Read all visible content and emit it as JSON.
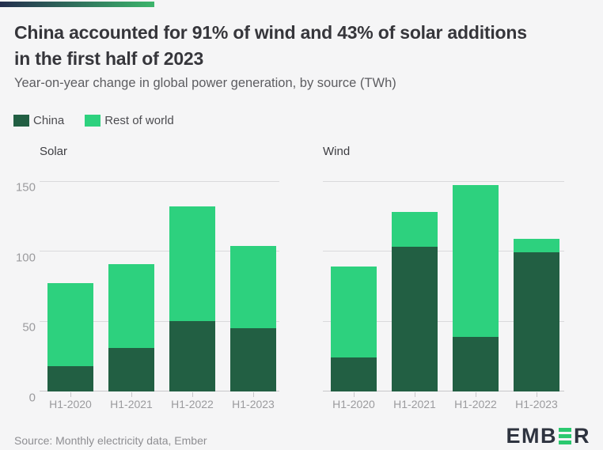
{
  "header": {
    "title_line1": "China accounted for 91% of wind and 43% of solar additions",
    "title_line2": "in the first half of 2023",
    "subtitle": "Year-on-year change in global power generation, by source (TWh)"
  },
  "legend": {
    "items": [
      {
        "label": "China",
        "color": "#225f43"
      },
      {
        "label": "Rest of world",
        "color": "#2dd17e"
      }
    ]
  },
  "chart_data": [
    {
      "type": "bar",
      "stacked": true,
      "title": "Solar",
      "categories": [
        "H1-2020",
        "H1-2021",
        "H1-2022",
        "H1-2023"
      ],
      "series": [
        {
          "name": "China",
          "color": "#225f43",
          "values": [
            18,
            31,
            50,
            45
          ]
        },
        {
          "name": "Rest of world",
          "color": "#2dd17e",
          "values": [
            59,
            60,
            82,
            59
          ]
        }
      ],
      "totals": [
        77,
        91,
        132,
        104
      ],
      "ylim": [
        0,
        150
      ],
      "yticks": [
        0,
        50,
        100,
        150
      ],
      "show_y_labels": true,
      "grid": true,
      "legend_position": "top-left"
    },
    {
      "type": "bar",
      "stacked": true,
      "title": "Wind",
      "categories": [
        "H1-2020",
        "H1-2021",
        "H1-2022",
        "H1-2023"
      ],
      "series": [
        {
          "name": "China",
          "color": "#225f43",
          "values": [
            24,
            103,
            39,
            99
          ]
        },
        {
          "name": "Rest of world",
          "color": "#2dd17e",
          "values": [
            65,
            25,
            108,
            10
          ]
        }
      ],
      "totals": [
        89,
        128,
        147,
        109
      ],
      "ylim": [
        0,
        150
      ],
      "yticks": [
        0,
        50,
        100,
        150
      ],
      "show_y_labels": false,
      "grid": true,
      "legend_position": "none"
    }
  ],
  "footer": {
    "source": "Source: Monthly electricity data, Ember",
    "logo": {
      "text_start": "EMB",
      "text_end": "R",
      "stylized_letter": "E",
      "accent_color": "#2bc96f",
      "text_color": "#2e333f"
    }
  },
  "colors": {
    "background": "#f5f5f6",
    "china": "#225f43",
    "rest_of_world": "#2dd17e",
    "gradient_left": "#242e4e",
    "gradient_right": "#3cb56b",
    "gridline": "#dadadc",
    "axis_line": "#c7c7ca",
    "axis_text": "#9b9b9e",
    "title_text": "#36363b"
  }
}
